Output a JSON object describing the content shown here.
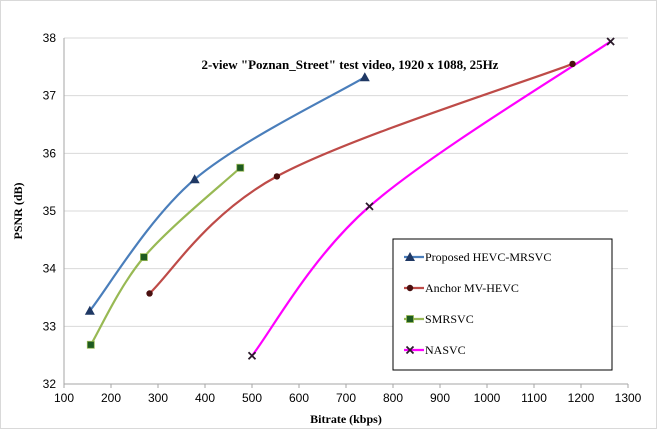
{
  "chart_data": {
    "type": "line",
    "title": "2-view \"Poznan_Street\"  test video, 1920 x 1088, 25Hz",
    "xlabel": "Bitrate (kbps)",
    "ylabel": "PSNR (dB)",
    "xlim": [
      100,
      1300
    ],
    "ylim": [
      32,
      38
    ],
    "xticks": [
      "100",
      "200",
      "300",
      "400",
      "500",
      "600",
      "700",
      "800",
      "900",
      "1000",
      "1100",
      "1200",
      "1300"
    ],
    "yticks": [
      "32",
      "33",
      "34",
      "35",
      "36",
      "37",
      "38"
    ],
    "grid": "horizontal",
    "legend_position": "bottom-right",
    "series": [
      {
        "name": "Proposed HEVC-MRSVC",
        "color": "#4a7ebb",
        "marker": "triangle",
        "marker_color": "#1f3864",
        "x": [
          155,
          378,
          740
        ],
        "y": [
          33.27,
          35.55,
          37.32
        ]
      },
      {
        "name": "Anchor MV-HEVC",
        "color": "#be4b48",
        "marker": "circle",
        "marker_color": "#4a1010",
        "x": [
          282,
          553,
          1182
        ],
        "y": [
          33.57,
          35.6,
          37.55
        ]
      },
      {
        "name": "SMRSVC",
        "color": "#98b954",
        "marker": "square",
        "marker_color": "#1e5a20",
        "x": [
          157,
          270,
          475
        ],
        "y": [
          32.68,
          34.2,
          35.75
        ]
      },
      {
        "name": "NASVC",
        "color": "#ff00ff",
        "marker": "x",
        "marker_color": "#2a1a2a",
        "x": [
          500,
          750,
          1263
        ],
        "y": [
          32.49,
          35.08,
          37.94
        ]
      }
    ]
  }
}
